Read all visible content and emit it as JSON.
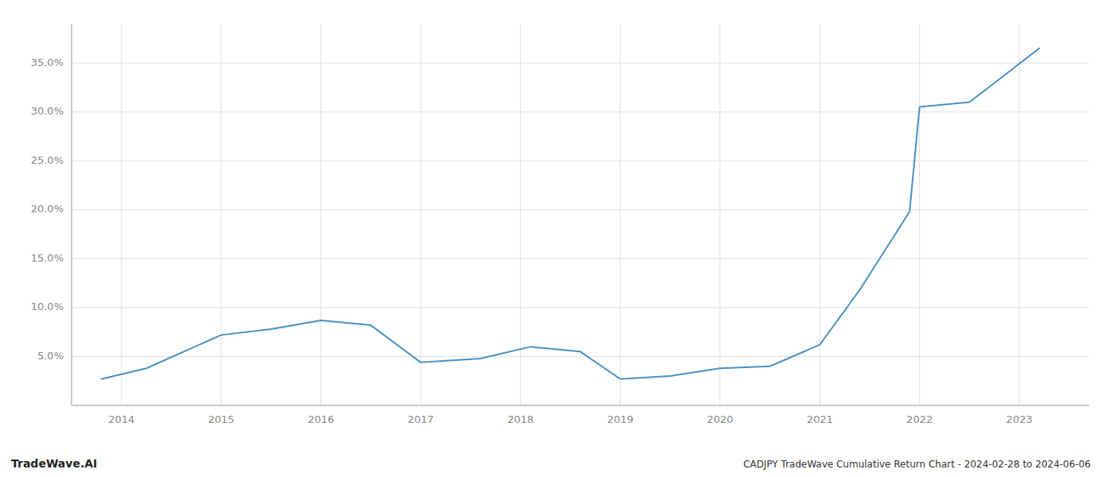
{
  "chart_data": {
    "type": "line",
    "title": "CADJPY TradeWave Cumulative Return Chart - 2024-02-28 to 2024-06-06",
    "annotations": [
      "TradeWave.AI"
    ],
    "x": [
      2013.8,
      2014.25,
      2015.0,
      2015.5,
      2016.0,
      2016.5,
      2017.0,
      2017.6,
      2018.1,
      2018.6,
      2019.0,
      2019.5,
      2020.0,
      2020.5,
      2021.0,
      2021.4,
      2021.9,
      2022.0,
      2022.5,
      2023.2
    ],
    "values": [
      0.027,
      0.038,
      0.072,
      0.078,
      0.087,
      0.082,
      0.044,
      0.048,
      0.06,
      0.055,
      0.027,
      0.03,
      0.038,
      0.04,
      0.062,
      0.118,
      0.198,
      0.305,
      0.31,
      0.365
    ],
    "color": "#4a90c4",
    "xlim": [
      2013.5,
      2023.7
    ],
    "xticks": [
      2014,
      2015,
      2016,
      2017,
      2018,
      2019,
      2020,
      2021,
      2022,
      2023
    ],
    "ylim": [
      0.0,
      0.39
    ],
    "yticks": [
      {
        "value": 0.05,
        "label": "5.0%"
      },
      {
        "value": 0.1,
        "label": "10.0%"
      },
      {
        "value": 0.15,
        "label": "15.0%"
      },
      {
        "value": 0.2,
        "label": "20.0%"
      },
      {
        "value": 0.25,
        "label": "25.0%"
      },
      {
        "value": 0.3,
        "label": "30.0%"
      },
      {
        "value": 0.35,
        "label": "35.0%"
      }
    ],
    "grid": true
  }
}
